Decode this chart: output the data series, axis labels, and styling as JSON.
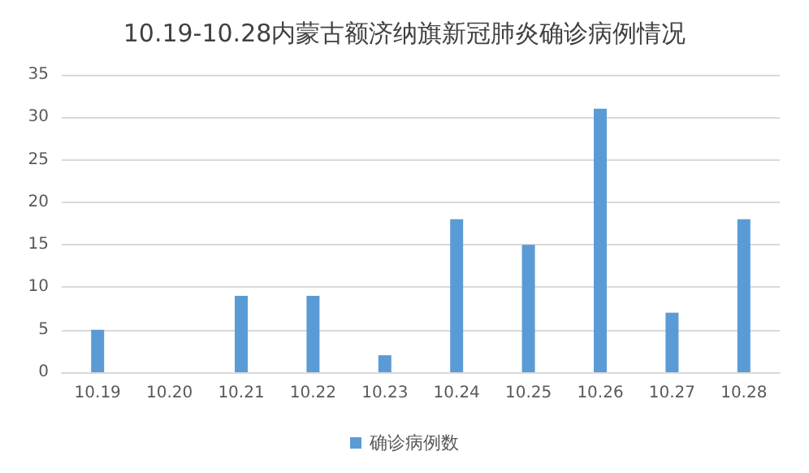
{
  "chart_data": {
    "type": "bar",
    "title": "10.19-10.28内蒙古额济纳旗新冠肺炎确诊病例情况",
    "categories": [
      "10.19",
      "10.20",
      "10.21",
      "10.22",
      "10.23",
      "10.24",
      "10.25",
      "10.26",
      "10.27",
      "10.28"
    ],
    "series": [
      {
        "name": "确诊病例数",
        "color": "#5b9bd5",
        "values": [
          5,
          0,
          9,
          9,
          2,
          18,
          15,
          31,
          7,
          18
        ]
      }
    ],
    "ylim": [
      0,
      35
    ],
    "yticks": [
      0,
      5,
      10,
      15,
      20,
      25,
      30,
      35
    ],
    "grid": "y",
    "legend": "bottom"
  }
}
